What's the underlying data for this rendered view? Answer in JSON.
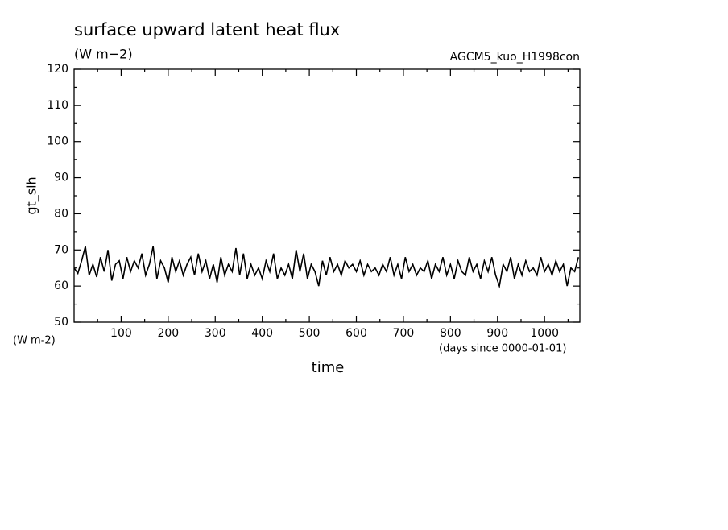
{
  "chart_data": {
    "type": "line",
    "title": "surface upward latent heat flux",
    "subtitle": "(W m−2)",
    "annotation_right": "AGCM5_kuo_H1998con",
    "ylabel": "gt_slh",
    "yunits": "(W m-2)",
    "xunits": "(days since 0000-01-01)",
    "xlabel": "time",
    "xlim": [
      0,
      1075
    ],
    "ylim": [
      50,
      120
    ],
    "xticks": [
      100,
      200,
      300,
      400,
      500,
      600,
      700,
      800,
      900,
      1000
    ],
    "yticks": [
      50,
      60,
      70,
      80,
      90,
      100,
      110,
      120
    ],
    "xminorticks": [
      50,
      150,
      250,
      350,
      450,
      550,
      650,
      750,
      850,
      950,
      1050
    ],
    "yminorticks": [
      55,
      65,
      75,
      85,
      95,
      105,
      115
    ],
    "x": [
      0,
      8,
      16,
      24,
      32,
      40,
      48,
      56,
      64,
      72,
      80,
      88,
      96,
      104,
      112,
      120,
      128,
      136,
      144,
      152,
      160,
      168,
      176,
      184,
      192,
      200,
      208,
      216,
      224,
      232,
      240,
      248,
      256,
      264,
      272,
      280,
      288,
      296,
      304,
      312,
      320,
      328,
      336,
      344,
      352,
      360,
      368,
      376,
      384,
      392,
      400,
      408,
      416,
      424,
      432,
      440,
      448,
      456,
      464,
      472,
      480,
      488,
      496,
      504,
      512,
      520,
      528,
      536,
      544,
      552,
      560,
      568,
      576,
      584,
      592,
      600,
      608,
      616,
      624,
      632,
      640,
      648,
      656,
      664,
      672,
      680,
      688,
      696,
      704,
      712,
      720,
      728,
      736,
      744,
      752,
      760,
      768,
      776,
      784,
      792,
      800,
      808,
      816,
      824,
      832,
      840,
      848,
      856,
      864,
      872,
      880,
      888,
      896,
      904,
      912,
      920,
      928,
      936,
      944,
      952,
      960,
      968,
      976,
      984,
      992,
      1000,
      1008,
      1016,
      1024,
      1032,
      1040,
      1048,
      1056,
      1064,
      1072
    ],
    "series": [
      {
        "color": "#000000",
        "values": [
          65,
          63.5,
          67,
          71,
          63,
          66,
          62.5,
          68,
          64,
          70,
          61.5,
          66,
          67,
          62,
          68,
          64,
          67,
          65,
          69,
          63,
          66,
          71,
          62,
          67,
          65,
          61,
          68,
          64,
          67,
          63,
          66,
          68,
          63,
          69,
          64,
          67,
          62,
          66,
          61,
          68,
          63,
          66,
          64,
          70.5,
          63,
          69,
          62,
          66,
          63,
          65,
          62,
          67,
          64,
          69,
          62,
          65,
          63,
          66,
          62,
          70,
          64,
          69,
          62,
          66,
          64,
          60,
          67,
          63,
          68,
          64,
          66,
          63,
          67,
          65,
          66,
          64,
          67,
          63,
          66,
          64,
          65,
          63,
          66,
          64,
          68,
          63,
          66,
          62,
          68,
          64,
          66,
          63,
          65,
          64,
          67,
          62,
          66,
          64,
          68,
          63,
          66,
          62,
          67,
          64,
          63,
          68,
          64,
          66,
          62,
          67,
          64,
          68,
          63,
          60,
          66,
          64,
          68,
          62,
          66,
          63,
          67,
          64,
          65,
          63,
          68,
          64,
          66,
          63,
          67,
          64,
          66,
          60,
          65,
          64,
          68
        ]
      }
    ]
  }
}
